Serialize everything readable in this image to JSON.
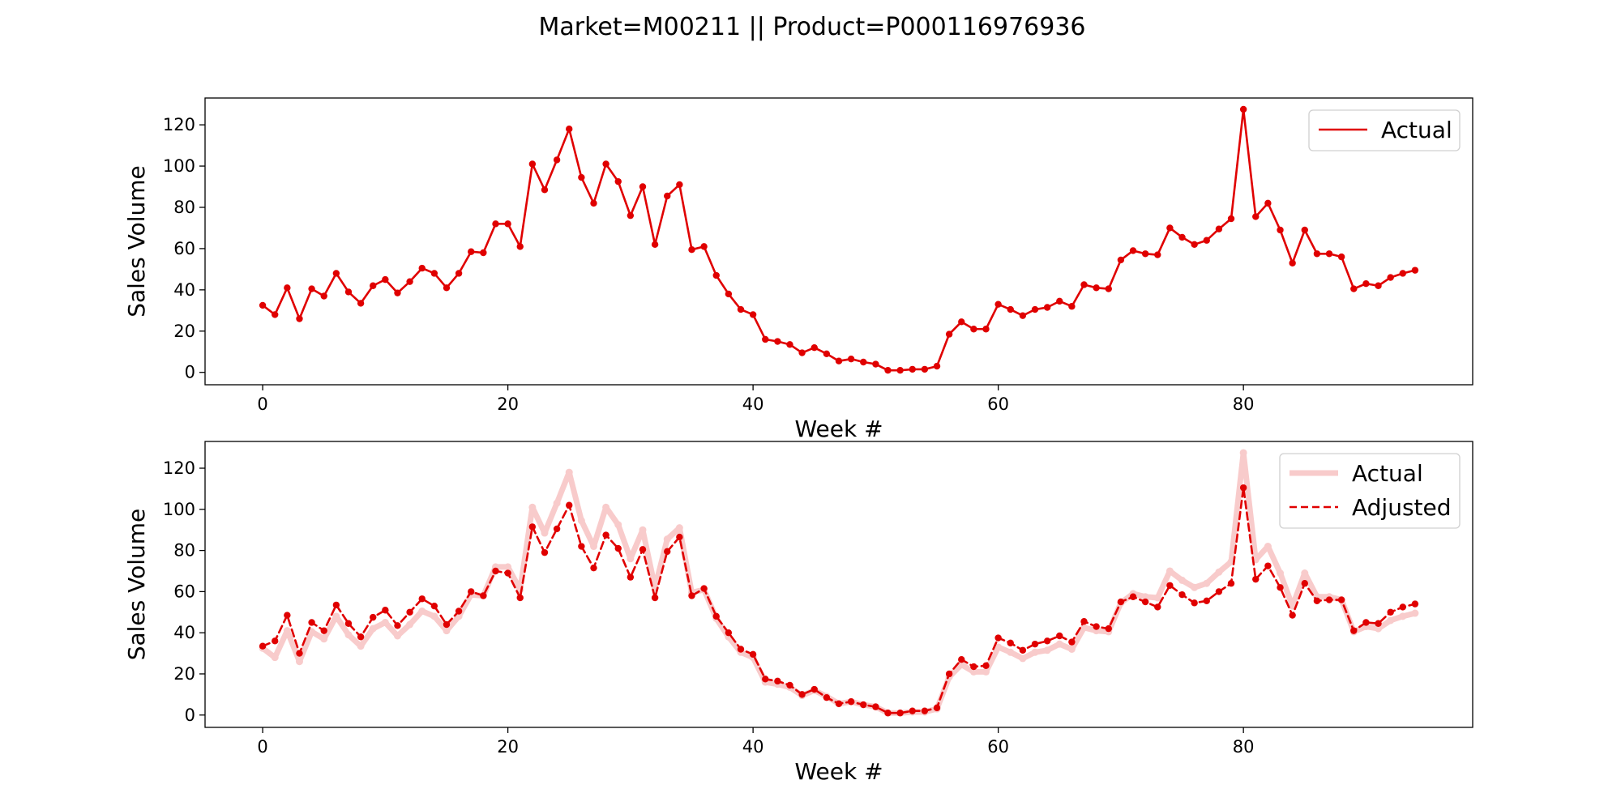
{
  "figure": {
    "title": "Market=M00211 || Product=P000116976936"
  },
  "chart_data": [
    {
      "type": "line",
      "xlabel": "Week #",
      "ylabel": "Sales Volume",
      "xlim": [
        -4.7,
        98.7
      ],
      "ylim": [
        -6,
        133
      ],
      "xticks": [
        0,
        20,
        40,
        60,
        80
      ],
      "yticks": [
        0,
        20,
        40,
        60,
        80,
        100,
        120
      ],
      "legend_position": "upper right",
      "grid": false,
      "series": [
        {
          "name": "Actual",
          "color": "#e00000",
          "alpha": 1,
          "line_style": "solid",
          "values": [
            32.5,
            28,
            41,
            26,
            40.5,
            37,
            48,
            39,
            33.5,
            42,
            45,
            38.5,
            44,
            50.5,
            48,
            41,
            48,
            58.5,
            58,
            72,
            72,
            61,
            101,
            88.5,
            103,
            118,
            94.5,
            82,
            101,
            92.5,
            76,
            90,
            62,
            85.5,
            91,
            59.5,
            61,
            47,
            38,
            30.5,
            28,
            16,
            15,
            13.5,
            9.5,
            12,
            9,
            5.5,
            6.5,
            5,
            4,
            1,
            1,
            1.5,
            1.5,
            3,
            18.5,
            24.5,
            21,
            21,
            33,
            30.5,
            27.5,
            30.5,
            31.5,
            34.5,
            32,
            42.5,
            41,
            40.5,
            54.5,
            59,
            57.5,
            57,
            70,
            65.5,
            62,
            64,
            69.5,
            74.5,
            127.5,
            75.5,
            82,
            69,
            53,
            69,
            57.5,
            57.5,
            56,
            40.5,
            43,
            42,
            46,
            48,
            49.5
          ]
        }
      ]
    },
    {
      "type": "line",
      "xlabel": "Week #",
      "ylabel": "Sales Volume",
      "xlim": [
        -4.7,
        98.7
      ],
      "ylim": [
        -6,
        133
      ],
      "xticks": [
        0,
        20,
        40,
        60,
        80
      ],
      "yticks": [
        0,
        20,
        40,
        60,
        80,
        100,
        120
      ],
      "legend_position": "upper right",
      "grid": false,
      "series": [
        {
          "name": "Actual",
          "color": "#e00000",
          "alpha": 0.2,
          "line_style": "solid",
          "values": [
            32.5,
            28,
            41,
            26,
            40.5,
            37,
            48,
            39,
            33.5,
            42,
            45,
            38.5,
            44,
            50.5,
            48,
            41,
            48,
            58.5,
            58,
            72,
            72,
            61,
            101,
            88.5,
            103,
            118,
            94.5,
            82,
            101,
            92.5,
            76,
            90,
            62,
            85.5,
            91,
            59.5,
            61,
            47,
            38,
            30.5,
            28,
            16,
            15,
            13.5,
            9.5,
            12,
            9,
            5.5,
            6.5,
            5,
            4,
            1,
            1,
            1.5,
            1.5,
            3,
            18.5,
            24.5,
            21,
            21,
            33,
            30.5,
            27.5,
            30.5,
            31.5,
            34.5,
            32,
            42.5,
            41,
            40.5,
            54.5,
            59,
            57.5,
            57,
            70,
            65.5,
            62,
            64,
            69.5,
            74.5,
            127.5,
            75.5,
            82,
            69,
            53,
            69,
            57.5,
            57.5,
            56,
            40.5,
            43,
            42,
            46,
            48,
            49.5
          ]
        },
        {
          "name": "Adjusted",
          "color": "#e00000",
          "alpha": 1,
          "line_style": "dashed",
          "values": [
            33.5,
            36,
            48.5,
            30,
            45,
            41,
            53.5,
            44.5,
            38,
            47.5,
            51,
            43.5,
            50,
            56.5,
            53,
            44,
            50.5,
            60,
            58,
            70,
            69,
            57,
            91.5,
            79,
            90.5,
            102,
            82,
            71.5,
            87.5,
            81,
            67,
            80.5,
            57,
            79.5,
            86.5,
            58,
            61.5,
            48,
            40,
            32,
            29.5,
            17.5,
            16.5,
            14.5,
            10,
            12.5,
            8.5,
            5.5,
            6.5,
            5,
            4,
            1,
            1,
            2,
            2,
            3.5,
            20,
            27,
            23.5,
            24,
            37.5,
            35,
            31.5,
            34.5,
            36,
            38.5,
            35.5,
            45.5,
            43,
            42,
            55,
            57.5,
            55,
            52.5,
            63,
            58.5,
            54.5,
            55.5,
            60,
            64,
            110.5,
            66,
            72.5,
            62,
            48.5,
            64,
            55.5,
            56,
            56,
            41,
            45,
            44.5,
            50,
            52.5,
            54
          ]
        }
      ]
    }
  ]
}
